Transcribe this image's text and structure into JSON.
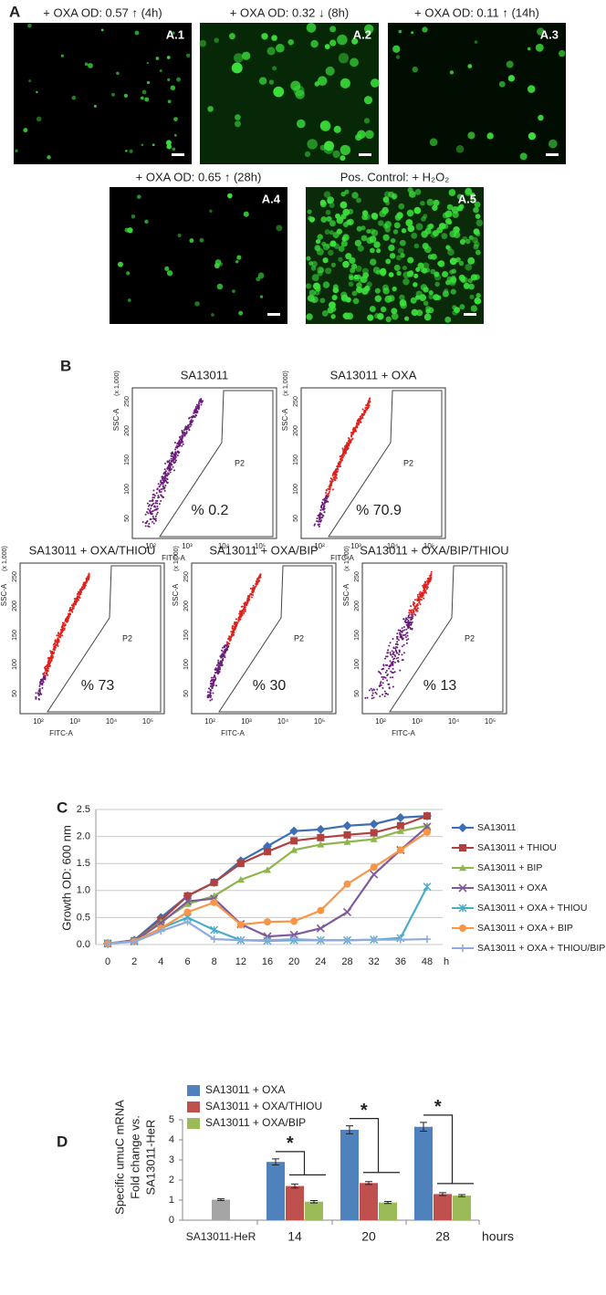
{
  "panel_a": {
    "label": "A",
    "images": [
      {
        "caption": "+ OXA OD: 0.57 ↑ (4h)",
        "tag": "A.1"
      },
      {
        "caption": "+ OXA OD: 0.32 ↓ (8h)",
        "tag": "A.2"
      },
      {
        "caption": "+ OXA OD: 0.11 ↑ (14h)",
        "tag": "A.3"
      },
      {
        "caption": "+ OXA OD: 0.65 ↑ (28h)",
        "tag": "A.4"
      },
      {
        "caption": "Pos. Control: + H₂O₂",
        "tag": "A.5"
      }
    ]
  },
  "panel_b": {
    "label": "B",
    "y_label": "SSC-A",
    "y_unit": "(x 1,000)",
    "x_label": "FITC-A",
    "gate": "P2",
    "yticks": [
      "50",
      "100",
      "150",
      "200",
      "250"
    ],
    "xticks": [
      "10²",
      "10³",
      "10⁴",
      "10⁵"
    ],
    "plots": [
      {
        "title": "SA13011",
        "percent": "% 0.2"
      },
      {
        "title": "SA13011 + OXA",
        "percent": "% 70.9"
      },
      {
        "title": "SA13011 + OXA/THIOU",
        "percent": "% 73"
      },
      {
        "title": "SA13011 + OXA/BIP",
        "percent": "% 30"
      },
      {
        "title": "SA13011 + OXA/BIP/THIOU",
        "percent": "% 13"
      }
    ]
  },
  "chart_data": [
    {
      "type": "line",
      "panel_label": "C",
      "y_label": "Growth OD: 600 nm",
      "x_unit": "h",
      "categories": [
        "0",
        "2",
        "4",
        "6",
        "8",
        "12",
        "16",
        "20",
        "24",
        "28",
        "32",
        "36",
        "48"
      ],
      "ylim": [
        0,
        2.5
      ],
      "yticks": [
        {
          "value": 0,
          "label": "0.0"
        },
        {
          "value": 0.5,
          "label": "0.5"
        },
        {
          "value": 1,
          "label": "1.0"
        },
        {
          "value": 1.5,
          "label": "1.5"
        },
        {
          "value": 2,
          "label": "2.0"
        },
        {
          "value": 2.5,
          "label": "2.5"
        }
      ],
      "grid": true,
      "legend": "right",
      "series": [
        {
          "name": "SA13011",
          "color": "#3e6fb5",
          "values": [
            0.02,
            0.08,
            0.5,
            0.9,
            1.15,
            1.55,
            1.82,
            2.1,
            2.13,
            2.2,
            2.23,
            2.35,
            2.38
          ]
        },
        {
          "name": "SA13011 + THIOU",
          "color": "#b0413e",
          "values": [
            0.02,
            0.07,
            0.45,
            0.9,
            1.15,
            1.5,
            1.72,
            1.92,
            1.98,
            2.03,
            2.07,
            2.2,
            2.38
          ]
        },
        {
          "name": "SA13011 + BIP",
          "color": "#8db64b",
          "values": [
            0.02,
            0.06,
            0.42,
            0.75,
            0.9,
            1.2,
            1.38,
            1.75,
            1.85,
            1.9,
            1.95,
            2.1,
            2.2
          ]
        },
        {
          "name": "SA13011 + OXA",
          "color": "#7e5a9b",
          "values": [
            0.02,
            0.06,
            0.4,
            0.8,
            0.85,
            0.38,
            0.15,
            0.18,
            0.3,
            0.6,
            1.3,
            1.75,
            2.18
          ]
        },
        {
          "name": "SA13011 + OXA + THIOU",
          "color": "#4bacc6",
          "values": [
            0.02,
            0.06,
            0.3,
            0.5,
            0.27,
            0.08,
            0.07,
            0.08,
            0.08,
            0.08,
            0.09,
            0.12,
            1.07
          ]
        },
        {
          "name": "SA13011 + OXA + BIP",
          "color": "#f79646",
          "values": [
            0.02,
            0.06,
            0.3,
            0.6,
            0.78,
            0.37,
            0.42,
            0.43,
            0.63,
            1.12,
            1.43,
            1.75,
            2.08
          ]
        },
        {
          "name": "SA13011 + OXA + THIOU/BIP",
          "color": "#8faadc",
          "values": [
            0.02,
            0.05,
            0.25,
            0.42,
            0.1,
            0.08,
            0.08,
            0.1,
            0.08,
            0.08,
            0.09,
            0.09,
            0.1
          ]
        }
      ]
    },
    {
      "type": "bar",
      "panel_label": "D",
      "y_label": [
        "Specific umuC mRNA",
        "Fold change vs.",
        "SA13011-HeR"
      ],
      "x_label": "hours",
      "categories": [
        "SA13011-HeR",
        "14",
        "20",
        "28"
      ],
      "ylim": [
        0,
        5
      ],
      "yticks": [
        0,
        1,
        2,
        3,
        4,
        5
      ],
      "legend": "upper left",
      "reference": {
        "value": 1.02,
        "error": 0.04,
        "color": "#a5a5a5"
      },
      "series": [
        {
          "name": "SA13011 + OXA",
          "color": "#4f81bd",
          "values": [
            null,
            2.9,
            4.5,
            4.65
          ],
          "errors": [
            null,
            0.15,
            0.2,
            0.22
          ]
        },
        {
          "name": "SA13011 + OXA/THIOU",
          "color": "#c0504d",
          "values": [
            null,
            1.7,
            1.85,
            1.3
          ],
          "errors": [
            null,
            0.1,
            0.07,
            0.07
          ]
        },
        {
          "name": "SA13011 + OXA/BIP",
          "color": "#9bbb59",
          "values": [
            null,
            0.92,
            0.88,
            1.22
          ],
          "errors": [
            null,
            0.06,
            0.05,
            0.05
          ]
        }
      ],
      "annotations": [
        "*",
        "*",
        "*"
      ]
    }
  ]
}
